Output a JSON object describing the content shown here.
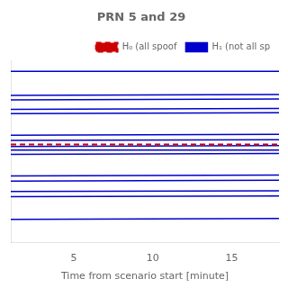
{
  "chart_data": {
    "type": "line",
    "title": "PRN 5 and 29",
    "xlabel": "Time from scenario start [minute]",
    "x": [
      1,
      18
    ],
    "xlim": [
      1,
      18
    ],
    "xticks": [
      5,
      10,
      15
    ],
    "ylim": [
      -1.05,
      1.05
    ],
    "yticks": [],
    "tick_labels": "x",
    "grid": false,
    "legend": "upper right",
    "series": [
      {
        "name": "H₀ (all spoof",
        "color": "#CC0000",
        "line_style": "dashed",
        "values": [
          0.085,
          0.085
        ]
      },
      {
        "name": "H₁ (not all sp",
        "color": "#0000CC",
        "line_style": "solid",
        "values": [
          0.93,
          0.93
        ]
      },
      {
        "name": "H₁ (not all sp",
        "color": "#0000CC",
        "line_style": "solid",
        "values": [
          0.65,
          0.66
        ]
      },
      {
        "name": "H₁ (not all sp",
        "color": "#0000CC",
        "line_style": "solid",
        "values": [
          0.6,
          0.61
        ]
      },
      {
        "name": "H₁ (not all sp",
        "color": "#0000CC",
        "line_style": "solid",
        "values": [
          0.49,
          0.5
        ]
      },
      {
        "name": "H₁ (not all sp",
        "color": "#0000CC",
        "line_style": "solid",
        "values": [
          0.44,
          0.45
        ]
      },
      {
        "name": "H₁ (not all sp",
        "color": "#0000CC",
        "line_style": "solid",
        "values": [
          0.19,
          0.2
        ]
      },
      {
        "name": "H₁ (not all sp",
        "color": "#0000CC",
        "line_style": "solid",
        "values": [
          0.13,
          0.14
        ]
      },
      {
        "name": "H₁ (not all sp",
        "color": "#0000CC",
        "line_style": "solid",
        "values": [
          0.06,
          0.07
        ]
      },
      {
        "name": "H₁ (not all sp",
        "color": "#0000CC",
        "line_style": "solid",
        "values": [
          0.02,
          0.02
        ]
      },
      {
        "name": "H₁ (not all sp",
        "color": "#0000CC",
        "line_style": "solid",
        "values": [
          -0.03,
          -0.02
        ]
      },
      {
        "name": "H₁ (not all sp",
        "color": "#0000CC",
        "line_style": "solid",
        "values": [
          -0.28,
          -0.27
        ]
      },
      {
        "name": "H₁ (not all sp",
        "color": "#0000CC",
        "line_style": "solid",
        "values": [
          -0.34,
          -0.33
        ]
      },
      {
        "name": "H₁ (not all sp",
        "color": "#0000CC",
        "line_style": "solid",
        "values": [
          -0.46,
          -0.45
        ]
      },
      {
        "name": "H₁ (not all sp",
        "color": "#0000CC",
        "line_style": "solid",
        "values": [
          -0.52,
          -0.51
        ]
      },
      {
        "name": "H₁ (not all sp",
        "color": "#0000CC",
        "line_style": "solid",
        "values": [
          -0.78,
          -0.77
        ]
      }
    ]
  }
}
